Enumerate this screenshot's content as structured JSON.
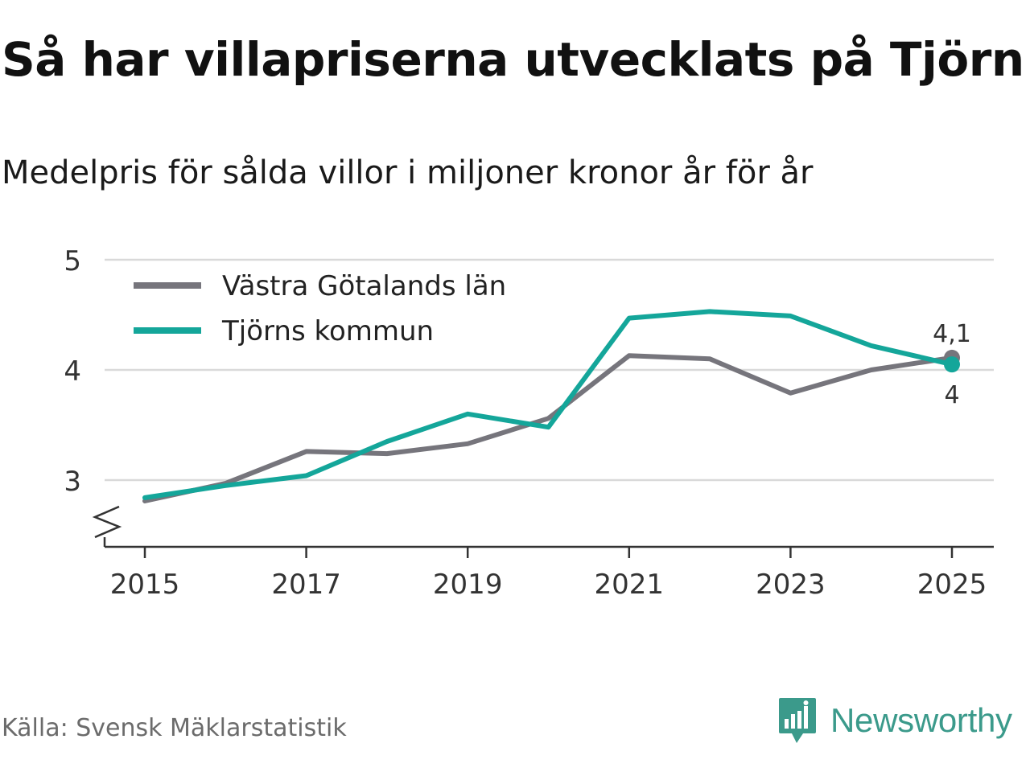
{
  "title": "Så har villapriserna utvecklats på Tjörn",
  "subtitle": "Medelpris för sålda villor i miljoner kronor år för år",
  "source": "Källa: Svensk Mäklarstatistik",
  "brand": "Newsworthy",
  "colors": {
    "vastra": "#76757c",
    "tjorn": "#14a69a",
    "grid": "#d9d9d9",
    "brand": "#3b9a8b"
  },
  "chart_data": {
    "type": "line",
    "title": "Så har villapriserna utvecklats på Tjörn",
    "subtitle": "Medelpris för sålda villor i miljoner kronor år för år",
    "x": [
      2015,
      2016,
      2017,
      2018,
      2019,
      2020,
      2021,
      2022,
      2023,
      2024,
      2025
    ],
    "xticks": [
      2015,
      2017,
      2019,
      2021,
      2023,
      2025
    ],
    "yticks": [
      3,
      4,
      5
    ],
    "ylim": [
      2.4,
      5
    ],
    "legend_position": "top-left",
    "grid": true,
    "series": [
      {
        "name": "Västra Götalands län",
        "color": "#76757c",
        "values": [
          2.81,
          2.97,
          3.26,
          3.24,
          3.33,
          3.56,
          4.13,
          4.1,
          3.79,
          4.0,
          4.11
        ],
        "end_label": "4,1"
      },
      {
        "name": "Tjörns kommun",
        "color": "#14a69a",
        "values": [
          2.84,
          2.95,
          3.04,
          3.35,
          3.6,
          3.48,
          4.47,
          4.53,
          4.49,
          4.22,
          4.05
        ],
        "end_label": "4"
      }
    ]
  }
}
